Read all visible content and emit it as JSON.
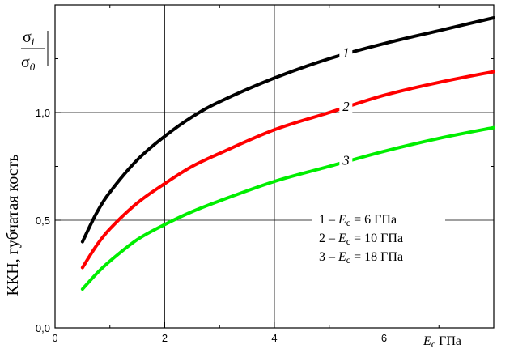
{
  "chart_data": {
    "type": "line",
    "ylabel": "ККН, губчатая кость",
    "y_fraction": {
      "numerator": "σ",
      "numerator_sub": "i",
      "denominator": "σ",
      "denominator_sub": "0"
    },
    "xlabel": {
      "var": "E",
      "sub": "c",
      "unit": "ГПа"
    },
    "xlim": [
      0,
      8
    ],
    "ylim": [
      0,
      1.5
    ],
    "xticks": [
      0,
      2,
      4,
      6
    ],
    "xtick_labels": [
      "0",
      "2",
      "4",
      "6"
    ],
    "yticks": [
      0,
      0.5,
      1.0
    ],
    "ytick_labels": [
      "0,0",
      "0,5",
      "1,0"
    ],
    "grid": true,
    "series": [
      {
        "name": "1",
        "color": "#000000",
        "x": [
          0.5,
          0.75,
          1.0,
          1.5,
          2.0,
          2.5,
          3.0,
          4.0,
          5.0,
          6.0,
          7.0,
          8.0
        ],
        "y": [
          0.4,
          0.53,
          0.63,
          0.78,
          0.89,
          0.98,
          1.05,
          1.16,
          1.25,
          1.32,
          1.38,
          1.44
        ]
      },
      {
        "name": "2",
        "color": "#ff0000",
        "x": [
          0.5,
          0.75,
          1.0,
          1.5,
          2.0,
          2.5,
          3.0,
          4.0,
          5.0,
          6.0,
          7.0,
          8.0
        ],
        "y": [
          0.28,
          0.38,
          0.46,
          0.58,
          0.67,
          0.75,
          0.81,
          0.92,
          1.0,
          1.08,
          1.14,
          1.19
        ]
      },
      {
        "name": "3",
        "color": "#00ee00",
        "x": [
          0.5,
          0.75,
          1.0,
          1.5,
          2.0,
          2.5,
          3.0,
          4.0,
          5.0,
          6.0,
          7.0,
          8.0
        ],
        "y": [
          0.18,
          0.25,
          0.31,
          0.41,
          0.48,
          0.54,
          0.59,
          0.68,
          0.75,
          0.82,
          0.88,
          0.93
        ]
      }
    ],
    "curve_labels": [
      {
        "text": "1",
        "x": 5.2,
        "y": 1.28
      },
      {
        "text": "2",
        "x": 5.2,
        "y": 1.03
      },
      {
        "text": "3",
        "x": 5.2,
        "y": 0.78
      }
    ],
    "legend": {
      "placement": "center-right",
      "entries": [
        {
          "prefix": "1 – ",
          "var": "E",
          "sub": "c",
          "rest": " = 6 ГПа"
        },
        {
          "prefix": "2 – ",
          "var": "E",
          "sub": "c",
          "rest": " = 10 ГПа"
        },
        {
          "prefix": "3 – ",
          "var": "E",
          "sub": "c",
          "rest": " = 18 ГПа"
        }
      ]
    }
  }
}
